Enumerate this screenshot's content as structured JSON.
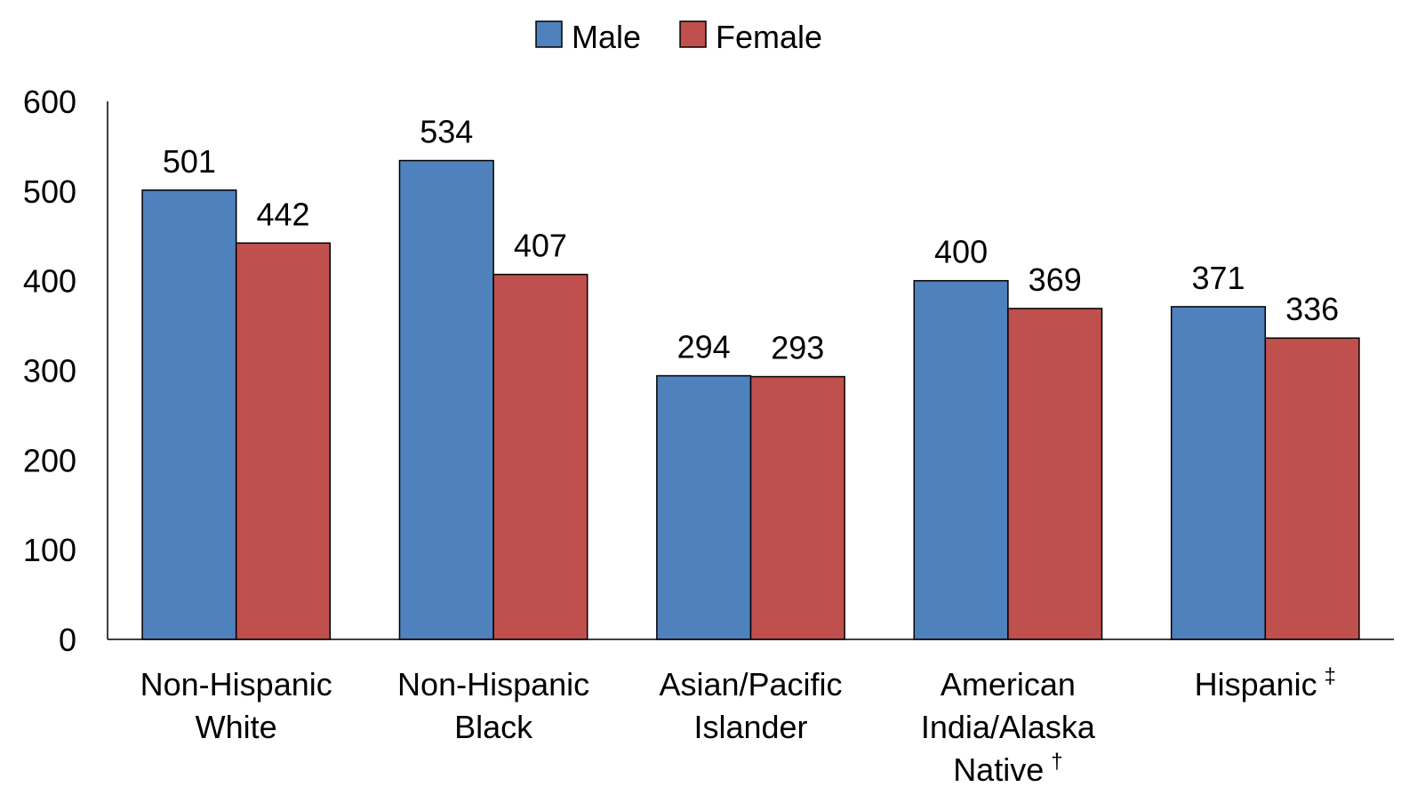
{
  "chart_data": {
    "type": "bar",
    "categories": [
      [
        "Non-Hispanic",
        "White"
      ],
      [
        "Non-Hispanic",
        "Black"
      ],
      [
        "Asian/Pacific",
        "Islander"
      ],
      [
        "American",
        "India/Alaska",
        "Native"
      ],
      [
        "Hispanic"
      ]
    ],
    "category_marks": [
      null,
      null,
      null,
      "†",
      "‡"
    ],
    "series": [
      {
        "name": "Male",
        "color": "#4f81bd",
        "values": [
          501,
          534,
          294,
          400,
          371
        ]
      },
      {
        "name": "Female",
        "color": "#c0504d",
        "values": [
          442,
          407,
          293,
          369,
          336
        ]
      }
    ],
    "ylim": [
      0,
      600
    ],
    "yticks": [
      0,
      100,
      200,
      300,
      400,
      500,
      600
    ],
    "grid": false,
    "legend": "top"
  }
}
